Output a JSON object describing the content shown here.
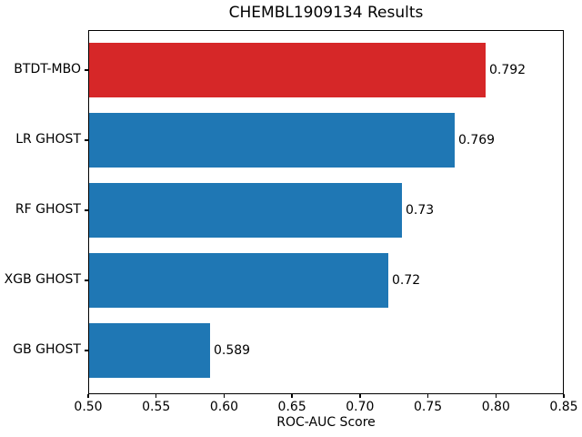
{
  "chart_data": {
    "type": "bar",
    "orientation": "horizontal",
    "title": "CHEMBL1909134 Results",
    "xlabel": "ROC-AUC Score",
    "ylabel": "",
    "categories": [
      "BTDT-MBO",
      "LR GHOST",
      "RF GHOST",
      "XGB GHOST",
      "GB GHOST"
    ],
    "values": [
      0.792,
      0.769,
      0.73,
      0.72,
      0.589
    ],
    "value_labels": [
      "0.792",
      "0.769",
      "0.73",
      "0.72",
      "0.589"
    ],
    "bar_colors": [
      "#d62728",
      "#1f77b4",
      "#1f77b4",
      "#1f77b4",
      "#1f77b4"
    ],
    "colors": {
      "highlight": "#d62728",
      "default": "#1f77b4",
      "text": "#000000",
      "spine": "#000000"
    },
    "xlim": [
      0.5,
      0.85
    ],
    "xticks": [
      0.5,
      0.55,
      0.6,
      0.65,
      0.7,
      0.75,
      0.8,
      0.85
    ],
    "xtick_labels": [
      "0.50",
      "0.55",
      "0.60",
      "0.65",
      "0.70",
      "0.75",
      "0.80",
      "0.85"
    ],
    "grid": false,
    "legend": null
  }
}
